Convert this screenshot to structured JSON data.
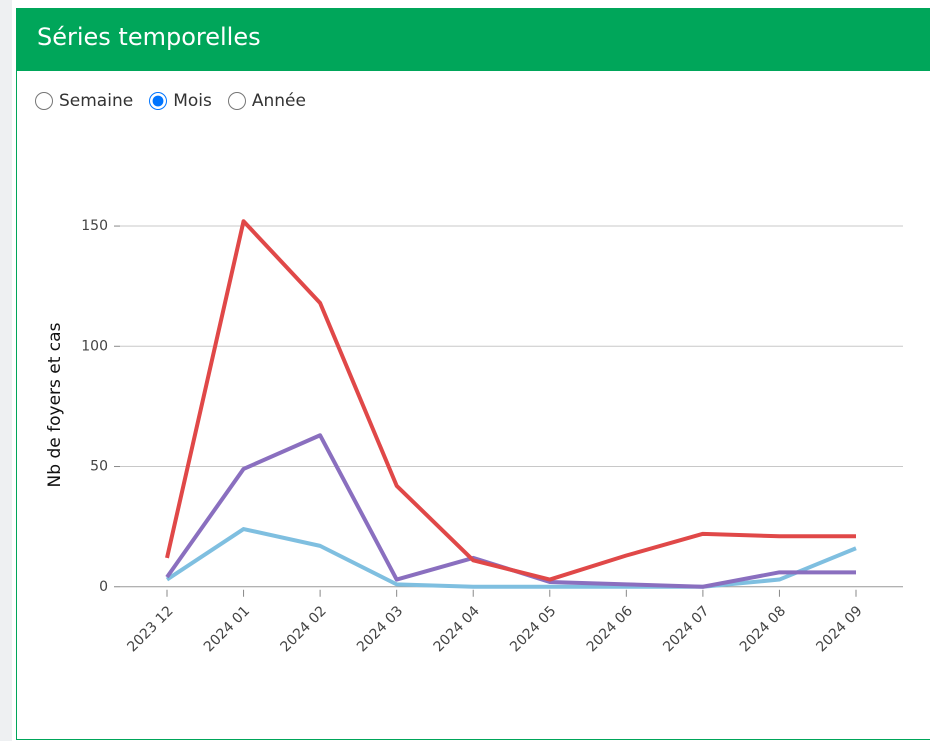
{
  "header": {
    "title": "Séries temporelles"
  },
  "radios": [
    {
      "label": "Semaine",
      "checked": false
    },
    {
      "label": "Mois",
      "checked": true
    },
    {
      "label": "Année",
      "checked": false
    }
  ],
  "chart_data": {
    "type": "line",
    "ylabel": "Nb de foyers et cas",
    "categories": [
      "2023 12",
      "2024 01",
      "2024 02",
      "2024 03",
      "2024 04",
      "2024 05",
      "2024 06",
      "2024 07",
      "2024 08",
      "2024 09"
    ],
    "series": [
      {
        "color": "#7fbfe0",
        "values": [
          3,
          24,
          17,
          1,
          0,
          0,
          0,
          0,
          3,
          16
        ]
      },
      {
        "color": "#8a6fbf",
        "values": [
          4,
          49,
          63,
          3,
          12,
          2,
          1,
          0,
          6,
          6
        ]
      },
      {
        "color": "#e04848",
        "values": [
          12,
          152,
          118,
          42,
          11,
          3,
          13,
          22,
          21,
          21
        ]
      }
    ],
    "ylim": [
      -8,
      160
    ],
    "yticks": [
      0,
      50,
      100,
      150
    ],
    "grid": true
  }
}
